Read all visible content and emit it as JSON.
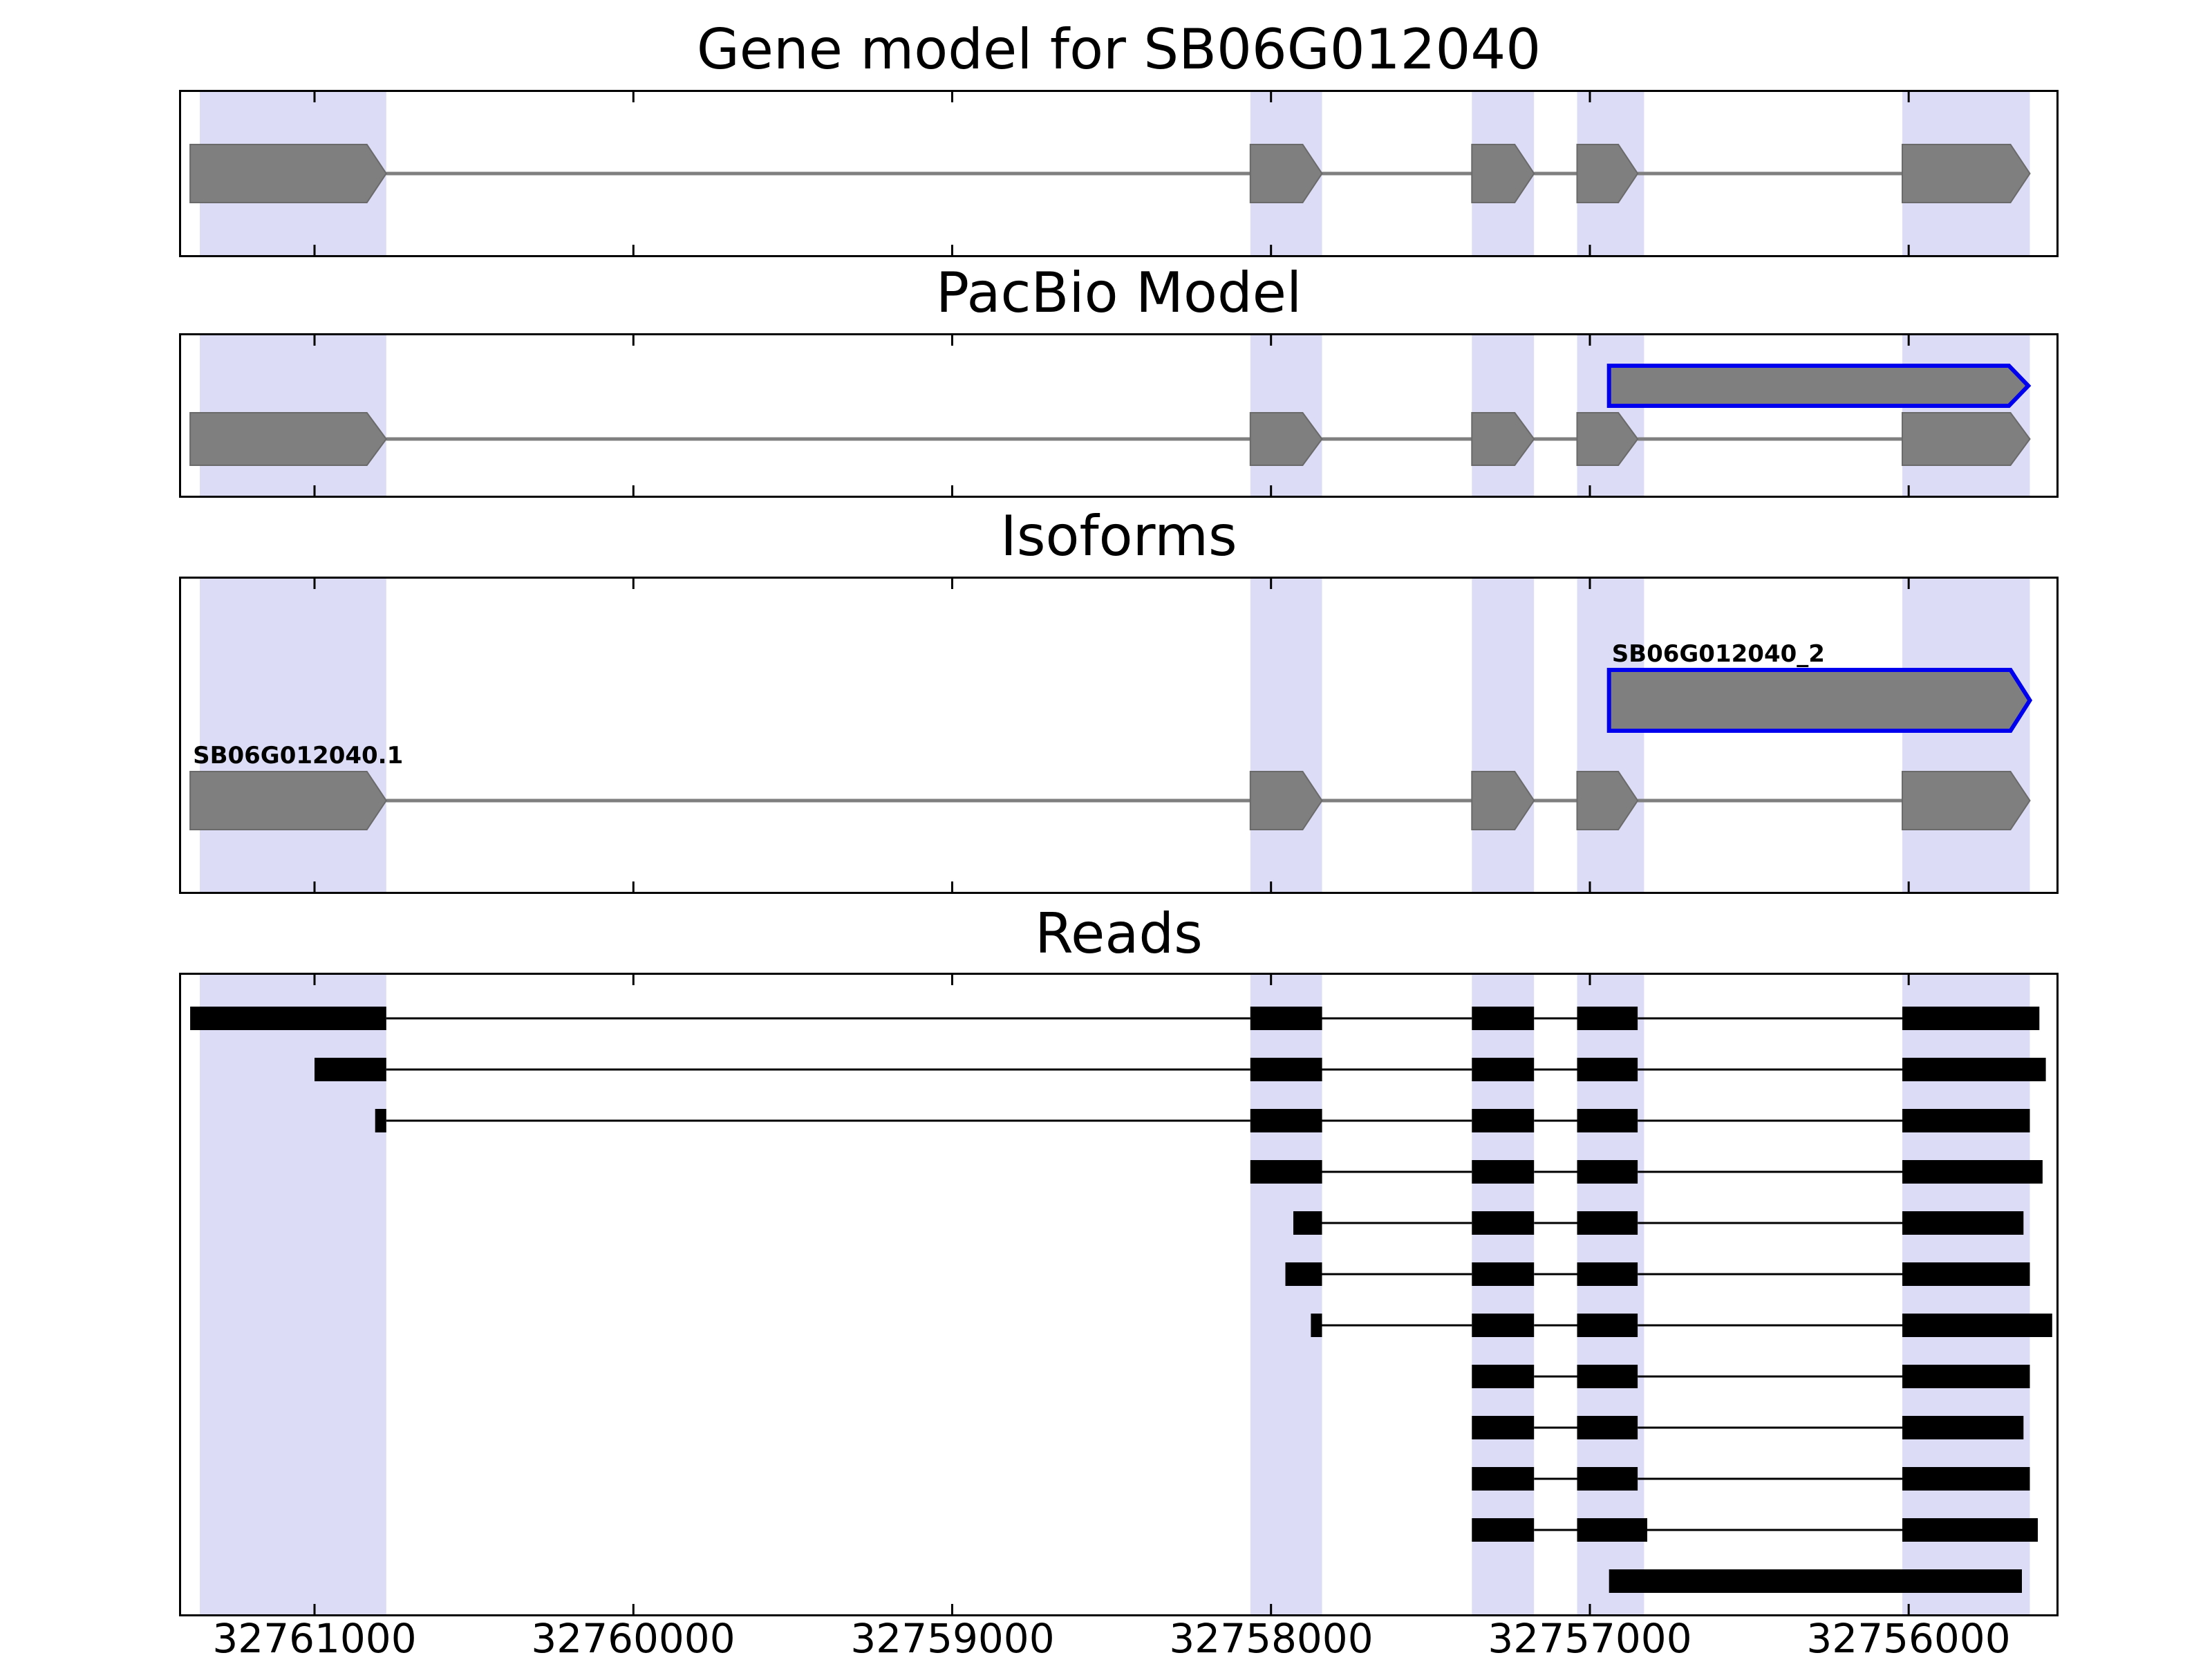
{
  "figure": {
    "background": "#ffffff",
    "panel_titles": [
      "Gene model for SB06G012040",
      "PacBio Model",
      "Isoforms",
      "Reads"
    ]
  },
  "chart_data": {
    "type": "gene-model-tracks",
    "title": "Gene model for SB06G012040",
    "x_axis": {
      "label": "",
      "ticks": [
        32761000,
        32760000,
        32759000,
        32758000,
        32757000,
        32756000
      ],
      "tick_labels": [
        "32761000",
        "32760000",
        "32759000",
        "32758000",
        "32757000",
        "32756000"
      ],
      "domain_left_bp": 32761425,
      "domain_right_bp": 32755530,
      "reversed": true
    },
    "colors": {
      "highlight": "#dcdcf6",
      "exon": "#7f7f7f",
      "exon_edge": "#6a6a6a",
      "highlight_outline": "#0000ee",
      "read": "#000000",
      "intron_gene": "#7f7f7f",
      "intron_read": "#000000",
      "border": "#000000"
    },
    "highlight_regions_bp": [
      [
        32761360,
        32760775
      ],
      [
        32758065,
        32757840
      ],
      [
        32757370,
        32757175
      ],
      [
        32757040,
        32756830
      ],
      [
        32756020,
        32755620
      ]
    ],
    "tracks": {
      "gene_model": {
        "title": "Gene model for SB06G012040",
        "transcripts": [
          {
            "label": "",
            "style": "gene",
            "direction": "right",
            "exons_bp": [
              [
                32761390,
                32760775
              ],
              [
                32758065,
                32757840
              ],
              [
                32757370,
                32757175
              ],
              [
                32757040,
                32756850
              ],
              [
                32756020,
                32755620
              ]
            ]
          }
        ]
      },
      "pacbio": {
        "title": "PacBio Model",
        "transcripts": [
          {
            "label": "",
            "style": "pacbio_highlight",
            "direction": "right",
            "exons_bp": [
              [
                32756940,
                32755625
              ]
            ]
          },
          {
            "label": "",
            "style": "gene",
            "direction": "right",
            "exons_bp": [
              [
                32761390,
                32760775
              ],
              [
                32758065,
                32757840
              ],
              [
                32757370,
                32757175
              ],
              [
                32757040,
                32756850
              ],
              [
                32756020,
                32755620
              ]
            ]
          }
        ]
      },
      "isoforms": {
        "title": "Isoforms",
        "transcripts": [
          {
            "label": "SB06G012040_2",
            "style": "pacbio_highlight",
            "direction": "right",
            "exons_bp": [
              [
                32756940,
                32755620
              ]
            ]
          },
          {
            "label": "SB06G012040.1",
            "style": "gene",
            "direction": "right",
            "exons_bp": [
              [
                32761390,
                32760775
              ],
              [
                32758065,
                32757840
              ],
              [
                32757370,
                32757175
              ],
              [
                32757040,
                32756850
              ],
              [
                32756020,
                32755620
              ]
            ]
          }
        ]
      },
      "reads": {
        "title": "Reads",
        "reads_bp": [
          [
            [
              32761390,
              32760775
            ],
            [
              32758065,
              32757840
            ],
            [
              32757370,
              32757175
            ],
            [
              32757040,
              32756850
            ],
            [
              32756020,
              32755590
            ]
          ],
          [
            [
              32761000,
              32760775
            ],
            [
              32758065,
              32757840
            ],
            [
              32757370,
              32757175
            ],
            [
              32757040,
              32756850
            ],
            [
              32756020,
              32755570
            ]
          ],
          [
            [
              32760810,
              32760775
            ],
            [
              32758065,
              32757840
            ],
            [
              32757370,
              32757175
            ],
            [
              32757040,
              32756850
            ],
            [
              32756020,
              32755620
            ]
          ],
          [
            [
              32758065,
              32757840
            ],
            [
              32757370,
              32757175
            ],
            [
              32757040,
              32756850
            ],
            [
              32756020,
              32755580
            ]
          ],
          [
            [
              32757930,
              32757840
            ],
            [
              32757370,
              32757175
            ],
            [
              32757040,
              32756850
            ],
            [
              32756020,
              32755640
            ]
          ],
          [
            [
              32757955,
              32757840
            ],
            [
              32757370,
              32757175
            ],
            [
              32757040,
              32756850
            ],
            [
              32756020,
              32755620
            ]
          ],
          [
            [
              32757875,
              32757840
            ],
            [
              32757370,
              32757175
            ],
            [
              32757040,
              32756850
            ],
            [
              32756020,
              32755550
            ]
          ],
          [
            [
              32757370,
              32757175
            ],
            [
              32757040,
              32756850
            ],
            [
              32756020,
              32755620
            ]
          ],
          [
            [
              32757370,
              32757175
            ],
            [
              32757040,
              32756850
            ],
            [
              32756020,
              32755640
            ]
          ],
          [
            [
              32757370,
              32757175
            ],
            [
              32757040,
              32756850
            ],
            [
              32756020,
              32755620
            ]
          ],
          [
            [
              32757370,
              32757175
            ],
            [
              32757040,
              32756820
            ],
            [
              32756020,
              32755595
            ]
          ],
          [
            [
              32756940,
              32755645
            ]
          ]
        ]
      }
    }
  }
}
